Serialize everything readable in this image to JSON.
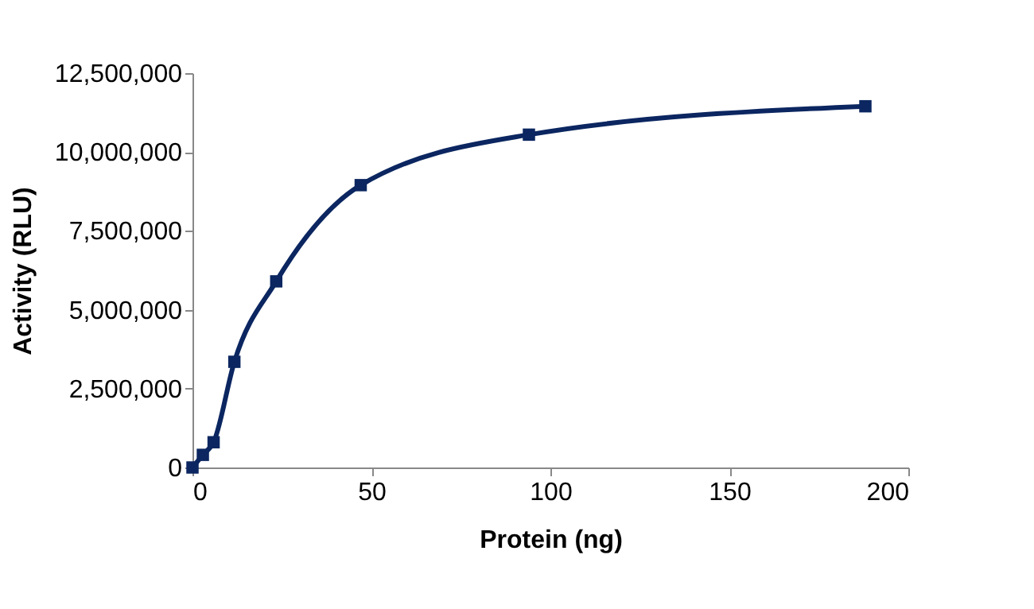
{
  "chart_data": {
    "type": "line",
    "xlabel": "Protein (ng)",
    "ylabel": "Activity (RLU)",
    "x": [
      0,
      2.9,
      5.9,
      11.7,
      23.4,
      47,
      94,
      188
    ],
    "series": [
      {
        "color": "#0b2660",
        "values": [
          0,
          400000,
          800000,
          3350000,
          5900000,
          8950000,
          10550000,
          11450000
        ]
      }
    ],
    "xlim": [
      0,
      200
    ],
    "xticks": [
      0,
      50,
      100,
      150,
      200
    ],
    "ylim": [
      0,
      12500000
    ],
    "yticks": [
      {
        "value": 0,
        "label": "0"
      },
      {
        "value": 2500000,
        "label": "2,500,000"
      },
      {
        "value": 5000000,
        "label": "5,000,000"
      },
      {
        "value": 7500000,
        "label": "7,500,000"
      },
      {
        "value": 10000000,
        "label": "10,000,000"
      },
      {
        "value": 12500000,
        "label": "12,500,000"
      }
    ],
    "grid": false,
    "legend": false,
    "marker": "square",
    "line_style": "solid"
  }
}
